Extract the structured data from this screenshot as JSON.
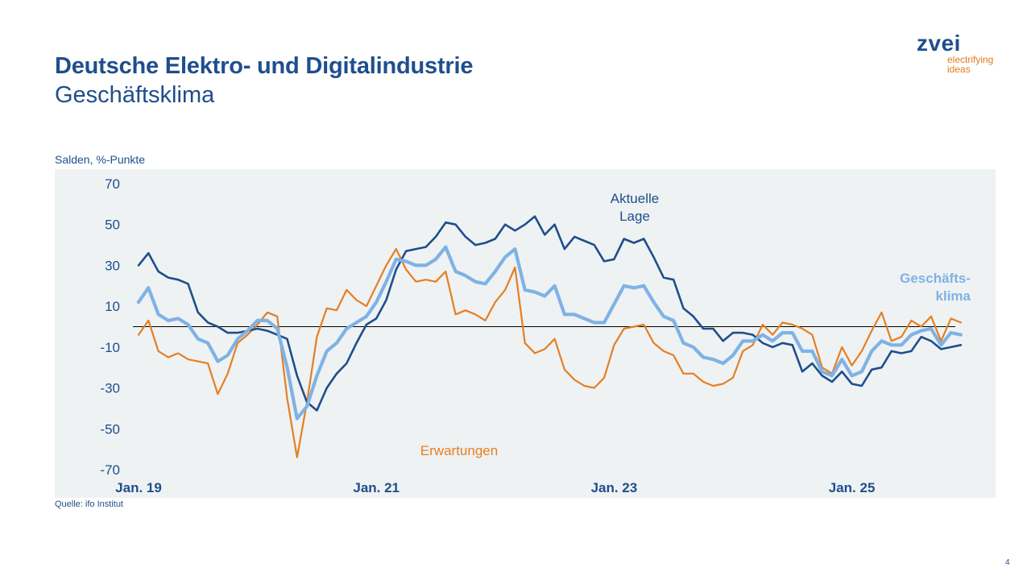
{
  "header": {
    "title": "Deutsche Elektro- und Digitalindustrie",
    "subtitle": "Geschäftsklima"
  },
  "logo": {
    "word": "zvei",
    "line1": "electrifying",
    "line2": "ideas"
  },
  "unit_label": "Salden, %-Punkte",
  "source": "Quelle: ifo Institut",
  "page_number": "4",
  "colors": {
    "aktuelle_lage": "#1f4e8c",
    "erwartungen": "#e67e22",
    "geschaeftsklima": "#7fb2e5",
    "text": "#1f4e8c",
    "panel": "#eef2f3"
  },
  "chart_data": {
    "type": "line",
    "ylim": [
      -70,
      70
    ],
    "yticks": [
      70,
      50,
      30,
      10,
      -10,
      -30,
      -50,
      -70
    ],
    "x_labels": [
      {
        "text": "Jan. 19",
        "index": 0
      },
      {
        "text": "Jan. 21",
        "index": 24
      },
      {
        "text": "Jan. 23",
        "index": 48
      },
      {
        "text": "Jan. 25",
        "index": 72
      }
    ],
    "reference_line": 0,
    "grid": false,
    "series": [
      {
        "name": "Aktuelle Lage",
        "label_lines": [
          "Aktuelle",
          "Lage"
        ],
        "color_key": "aktuelle_lage",
        "values": [
          30,
          36,
          27,
          24,
          23,
          21,
          7,
          2,
          0,
          -3,
          -3,
          -2,
          -1,
          -2,
          -4,
          -6,
          -24,
          -37,
          -41,
          -30,
          -23,
          -18,
          -8,
          1,
          4,
          13,
          28,
          37,
          38,
          39,
          44,
          51,
          50,
          44,
          40,
          41,
          43,
          50,
          47,
          50,
          54,
          45,
          50,
          38,
          44,
          42,
          40,
          32,
          33,
          43,
          41,
          43,
          34,
          24,
          23,
          9,
          5,
          -1,
          -1,
          -7,
          -3,
          -3,
          -4,
          -8,
          -10,
          -8,
          -9,
          -22,
          -18,
          -24,
          -27,
          -22,
          -28,
          -29,
          -21,
          -20,
          -12,
          -13,
          -12,
          -5,
          -7,
          -11,
          -10,
          -9
        ]
      },
      {
        "name": "Erwartungen",
        "label_lines": [
          "Erwartungen"
        ],
        "color_key": "erwartungen",
        "values": [
          -4,
          3,
          -12,
          -15,
          -13,
          -16,
          -17,
          -18,
          -33,
          -23,
          -8,
          -4,
          1,
          7,
          5,
          -35,
          -64,
          -37,
          -5,
          9,
          8,
          18,
          13,
          10,
          20,
          30,
          38,
          28,
          22,
          23,
          22,
          27,
          6,
          8,
          6,
          3,
          12,
          18,
          29,
          -8,
          -13,
          -11,
          -6,
          -21,
          -26,
          -29,
          -30,
          -25,
          -9,
          -1,
          0,
          1,
          -8,
          -12,
          -14,
          -23,
          -23,
          -27,
          -29,
          -28,
          -25,
          -12,
          -9,
          1,
          -4,
          2,
          1,
          -1,
          -4,
          -20,
          -23,
          -10,
          -19,
          -12,
          -2,
          7,
          -7,
          -5,
          3,
          0,
          5,
          -7,
          4,
          2
        ]
      },
      {
        "name": "Geschäftsklima",
        "label_lines": [
          "Geschäfts-",
          "klima"
        ],
        "color_key": "geschaeftsklima",
        "values": [
          12,
          19,
          6,
          3,
          4,
          1,
          -6,
          -8,
          -17,
          -14,
          -6,
          -2,
          3,
          3,
          -1,
          -20,
          -45,
          -39,
          -24,
          -12,
          -8,
          -1,
          2,
          5,
          12,
          22,
          33,
          32,
          30,
          30,
          33,
          39,
          27,
          25,
          22,
          21,
          27,
          34,
          38,
          18,
          17,
          15,
          20,
          6,
          6,
          4,
          2,
          2,
          11,
          20,
          19,
          20,
          12,
          5,
          3,
          -8,
          -10,
          -15,
          -16,
          -18,
          -14,
          -7,
          -7,
          -4,
          -7,
          -3,
          -3,
          -12,
          -12,
          -22,
          -24,
          -16,
          -24,
          -22,
          -12,
          -7,
          -9,
          -9,
          -4,
          -2,
          -1,
          -9,
          -3,
          -4
        ]
      }
    ]
  }
}
